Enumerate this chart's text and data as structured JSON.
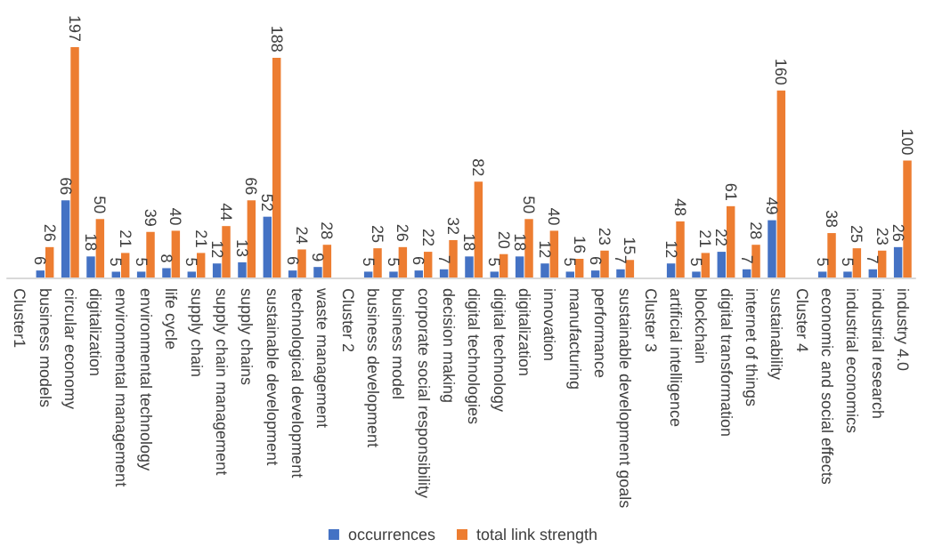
{
  "chart_data": {
    "type": "bar",
    "categories": [
      "Cluster1",
      "business models",
      "circular economy",
      "digitalization",
      "environmental management",
      "environmental technology",
      "life cycle",
      "supply chain",
      "supply chain management",
      "supply chains",
      "sustainable development",
      "technological development",
      "waste management",
      "Cluster 2",
      "business development",
      "business model",
      "corporate social responsibility",
      "decision making",
      "digital technologies",
      "digital technology",
      "digitalization",
      "innovation",
      "manufacturing",
      "performance",
      "sustainable development goals",
      "Cluster 3",
      "artificial intelligence",
      "blockchain",
      "digital transformation",
      "internet of things",
      "sustainability",
      "Cluster 4",
      "economic and social effects",
      "industrial economics",
      "industrial research",
      "industry 4.0"
    ],
    "series": [
      {
        "name": "occurrences",
        "color": "#4472c4",
        "values": [
          null,
          6,
          66,
          18,
          5,
          5,
          8,
          5,
          12,
          13,
          52,
          6,
          9,
          null,
          5,
          5,
          6,
          7,
          18,
          5,
          18,
          12,
          5,
          6,
          7,
          null,
          12,
          5,
          22,
          7,
          49,
          null,
          5,
          5,
          7,
          26
        ]
      },
      {
        "name": "total link strength",
        "color": "#ed7d31",
        "values": [
          null,
          26,
          197,
          50,
          21,
          39,
          40,
          21,
          44,
          66,
          188,
          24,
          28,
          null,
          25,
          26,
          22,
          32,
          82,
          20,
          50,
          40,
          16,
          23,
          15,
          null,
          48,
          21,
          61,
          28,
          160,
          null,
          38,
          25,
          23,
          100
        ]
      }
    ],
    "data_labels": true,
    "legend": "bottom",
    "grid": false
  }
}
